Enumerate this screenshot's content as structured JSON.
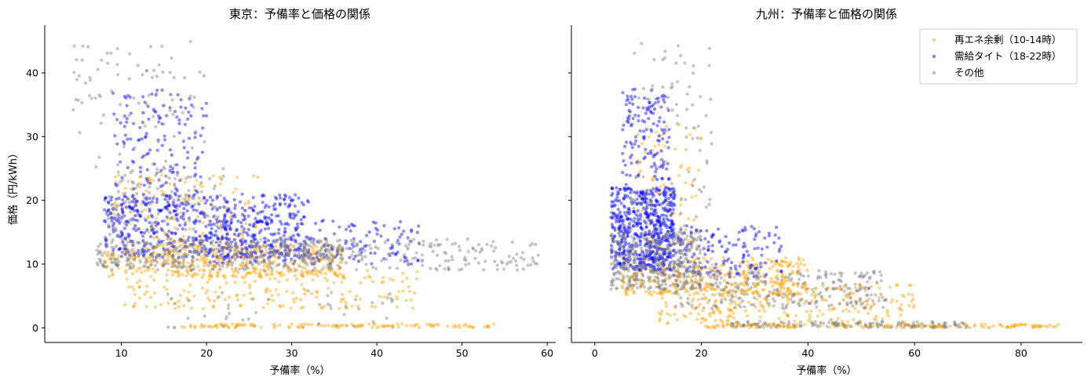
{
  "chart_data": [
    {
      "type": "scatter",
      "title": "東京：予備率と価格の関係",
      "xlabel": "予備率（%）",
      "ylabel": "価格（円/kWh）",
      "xlim": [
        1,
        61
      ],
      "ylim": [
        -2.3,
        47.5
      ],
      "xticks": [
        10,
        20,
        30,
        40,
        50,
        60
      ],
      "yticks": [
        0,
        10,
        20,
        30,
        40
      ],
      "grid": false,
      "series": [
        {
          "name": "再エネ余剰（10-14時）",
          "color": "#ffa500",
          "clusters": [
            {
              "x_range": [
                8,
                36
              ],
              "y_range": [
                8,
                13
              ],
              "weight": 0.5
            },
            {
              "x_range": [
                10,
                45
              ],
              "y_range": [
                3,
                9
              ],
              "weight": 0.2
            },
            {
              "x_range": [
                16,
                54
              ],
              "y_range": [
                0,
                0.6
              ],
              "weight": 0.15
            },
            {
              "x_range": [
                9,
                26
              ],
              "y_range": [
                13,
                24
              ],
              "weight": 0.15
            }
          ]
        },
        {
          "name": "需給タイト（18-22時）",
          "color": "#0000ff",
          "clusters": [
            {
              "x_range": [
                8,
                32
              ],
              "y_range": [
                11,
                21
              ],
              "weight": 0.65
            },
            {
              "x_range": [
                20,
                45
              ],
              "y_range": [
                10,
                17
              ],
              "weight": 0.2
            },
            {
              "x_range": [
                9,
                20
              ],
              "y_range": [
                21,
                37.5
              ],
              "weight": 0.15
            }
          ]
        },
        {
          "name": "その他",
          "color": "#808080",
          "clusters": [
            {
              "x_range": [
                7,
                36
              ],
              "y_range": [
                9,
                14
              ],
              "weight": 0.5
            },
            {
              "x_range": [
                30,
                59
              ],
              "y_range": [
                9,
                14
              ],
              "weight": 0.2
            },
            {
              "x_range": [
                8,
                22
              ],
              "y_range": [
                14,
                25
              ],
              "weight": 0.15
            },
            {
              "x_range": [
                4,
                20
              ],
              "y_range": [
                25,
                45
              ],
              "weight": 0.1
            },
            {
              "x_range": [
                14,
                42
              ],
              "y_range": [
                0,
                6
              ],
              "weight": 0.05
            }
          ]
        }
      ]
    },
    {
      "type": "scatter",
      "title": "九州：予備率と価格の関係",
      "xlabel": "予備率（%）",
      "ylabel": "",
      "xlim": [
        -4.4,
        91.5
      ],
      "ylim": [
        -2.3,
        47.5
      ],
      "xticks": [
        0,
        20,
        40,
        60,
        80
      ],
      "yticks": [
        0,
        10,
        20,
        30,
        40
      ],
      "grid": false,
      "legend_position": "top-right",
      "series": [
        {
          "name": "再エネ余剰（10-14時）",
          "color": "#ffa500",
          "clusters": [
            {
              "x_range": [
                5,
                40
              ],
              "y_range": [
                5,
                11
              ],
              "weight": 0.4
            },
            {
              "x_range": [
                12,
                60
              ],
              "y_range": [
                0.5,
                7
              ],
              "weight": 0.3
            },
            {
              "x_range": [
                20,
                87
              ],
              "y_range": [
                0,
                0.6
              ],
              "weight": 0.2
            },
            {
              "x_range": [
                8,
                20
              ],
              "y_range": [
                12,
                32
              ],
              "weight": 0.1
            }
          ]
        },
        {
          "name": "需給タイト（18-22時）",
          "color": "#0000ff",
          "clusters": [
            {
              "x_range": [
                3,
                15
              ],
              "y_range": [
                9,
                22
              ],
              "weight": 0.65
            },
            {
              "x_range": [
                10,
                35
              ],
              "y_range": [
                8,
                16
              ],
              "weight": 0.2
            },
            {
              "x_range": [
                5,
                14
              ],
              "y_range": [
                22,
                37.5
              ],
              "weight": 0.15
            }
          ]
        },
        {
          "name": "その他",
          "color": "#808080",
          "clusters": [
            {
              "x_range": [
                3,
                20
              ],
              "y_range": [
                6,
                15
              ],
              "weight": 0.45
            },
            {
              "x_range": [
                15,
                55
              ],
              "y_range": [
                3,
                9
              ],
              "weight": 0.3
            },
            {
              "x_range": [
                25,
                70
              ],
              "y_range": [
                0,
                1
              ],
              "weight": 0.15
            },
            {
              "x_range": [
                6,
                22
              ],
              "y_range": [
                15,
                45
              ],
              "weight": 0.1
            }
          ]
        }
      ]
    }
  ]
}
